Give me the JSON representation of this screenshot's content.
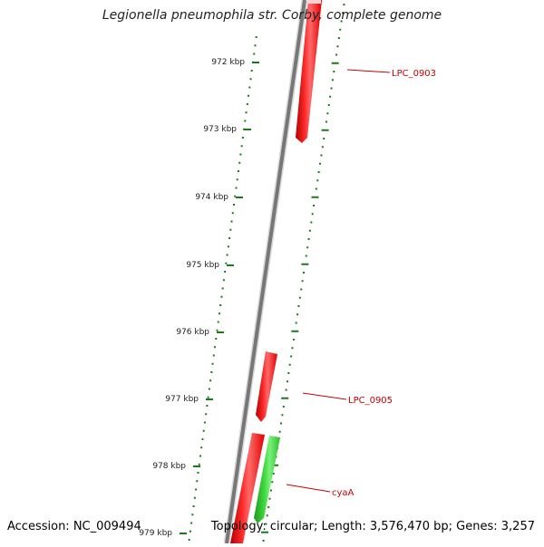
{
  "title": "Legionella pneumophila str. Corby, complete genome",
  "footer": {
    "accession": "Accession: NC_009494",
    "topology": "Topology: circular; Length: 3,576,470 bp; Genes: 3,257"
  },
  "colors": {
    "forward_gene": "#ff0000",
    "reverse_gene": "#2ecc2e",
    "backbone": "#777777",
    "ticks": "#1a7a1a",
    "label": "#cc0000"
  },
  "ticks": [
    {
      "label": "972 kbp"
    },
    {
      "label": "973 kbp"
    },
    {
      "label": "974 kbp"
    },
    {
      "label": "975 kbp"
    },
    {
      "label": "976 kbp"
    },
    {
      "label": "977 kbp"
    },
    {
      "label": "978 kbp"
    },
    {
      "label": "979 kbp"
    }
  ],
  "genes": [
    {
      "name": "LPC_0903",
      "strand": "+"
    },
    {
      "name": "LPC_0905",
      "strand": "+"
    },
    {
      "name": "",
      "strand": "+"
    },
    {
      "name": "cyaA",
      "strand": "-"
    }
  ]
}
